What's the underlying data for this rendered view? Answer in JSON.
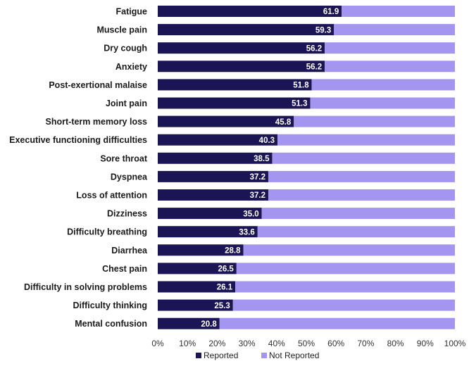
{
  "chart_data": {
    "type": "bar",
    "orientation": "horizontal",
    "stacked": true,
    "percent_stacked": true,
    "title": "",
    "xlabel": "",
    "ylabel": "",
    "xlim": [
      0,
      100
    ],
    "x_ticks": [
      "0%",
      "10%",
      "20%",
      "30%",
      "40%",
      "50%",
      "60%",
      "70%",
      "80%",
      "90%",
      "100%"
    ],
    "categories": [
      "Fatigue",
      "Muscle pain",
      "Dry cough",
      "Anxiety",
      "Post-exertional malaise",
      "Joint pain",
      "Short-term memory loss",
      "Executive functioning difficulties",
      "Sore throat",
      "Dyspnea",
      "Loss of attention",
      "Dizziness",
      "Difficulty breathing",
      "Diarrhea",
      "Chest pain",
      "Difficulty in solving problems",
      "Difficulty thinking",
      "Mental confusion"
    ],
    "series": [
      {
        "name": "Reported",
        "color": "#1b1455",
        "values": [
          61.9,
          59.3,
          56.2,
          56.2,
          51.8,
          51.3,
          45.8,
          40.3,
          38.5,
          37.2,
          37.2,
          35.0,
          33.6,
          28.8,
          26.5,
          26.1,
          25.3,
          20.8
        ],
        "labels": [
          "61.9",
          "59.3",
          "56.2",
          "56.2",
          "51.8",
          "51.3",
          "45.8",
          "40.3",
          "38.5",
          "37.2",
          "37.2",
          "35.0",
          "33.6",
          "28.8",
          "26.5",
          "26.1",
          "25.3",
          "20.8"
        ]
      },
      {
        "name": "Not Reported",
        "color": "#a496f0",
        "values": [
          38.1,
          40.7,
          43.8,
          43.8,
          48.2,
          48.7,
          54.2,
          59.7,
          61.5,
          62.8,
          62.8,
          65.0,
          66.4,
          71.2,
          73.5,
          73.9,
          74.7,
          79.2
        ]
      }
    ],
    "legend": {
      "position": "bottom"
    },
    "grid": false
  }
}
